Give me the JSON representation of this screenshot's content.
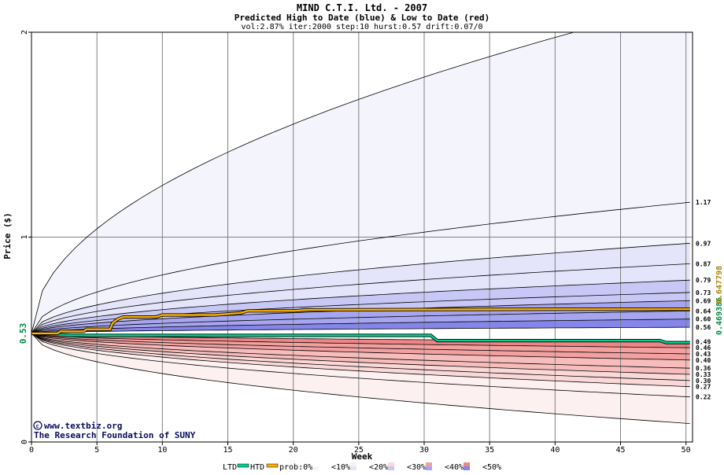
{
  "chart_data": {
    "type": "area",
    "title": "MIND C.T.I. Ltd. - 2007",
    "subtitle": "Predicted High to Date (blue) &  Low to Date (red)",
    "params": "vol:2.87% iter:2000 step:10 hurst:0.57 drift:0.07/0",
    "xlabel": "Week",
    "ylabel": "Price ($)",
    "xlim": [
      0,
      50.5
    ],
    "ylim": [
      0,
      2
    ],
    "x_ticks": [
      0,
      5,
      10,
      15,
      20,
      25,
      30,
      35,
      40,
      45,
      50
    ],
    "y_ticks": [
      0,
      1,
      2
    ],
    "grid": true,
    "start_price": 0.53,
    "start_price_label": "0.53",
    "htd_end_label": "0.647798",
    "ltd_end_label": "0.469386",
    "colors": {
      "high_band": [
        "#f4f4fc",
        "#e4e4fa",
        "#c8c8f6",
        "#a6a6f0",
        "#8585ea"
      ],
      "low_band": [
        "#fdf0f0",
        "#fbd8d8",
        "#f7bcbc",
        "#f3a0a0",
        "#ef8585"
      ],
      "htd_line": "#ffb000",
      "ltd_line": "#00d090",
      "grid": "#808080"
    },
    "high_quantiles": [
      {
        "label": "",
        "end": 2.15
      },
      {
        "label": "1.17",
        "end": 1.17
      },
      {
        "label": "0.97",
        "end": 0.97
      },
      {
        "label": "0.87",
        "end": 0.87
      },
      {
        "label": "0.79",
        "end": 0.79
      },
      {
        "label": "0.73",
        "end": 0.73
      },
      {
        "label": "0.69",
        "end": 0.69
      },
      {
        "label": "0.64",
        "end": 0.64
      },
      {
        "label": "0.60",
        "end": 0.6
      },
      {
        "label": "0.56",
        "end": 0.56
      }
    ],
    "low_quantiles": [
      {
        "label": "0.49",
        "end": 0.49
      },
      {
        "label": "0.46",
        "end": 0.46
      },
      {
        "label": "0.43",
        "end": 0.43
      },
      {
        "label": "0.40",
        "end": 0.4
      },
      {
        "label": "0.36",
        "end": 0.36
      },
      {
        "label": "0.33",
        "end": 0.33
      },
      {
        "label": "0.30",
        "end": 0.3
      },
      {
        "label": "0.27",
        "end": 0.27
      },
      {
        "label": "0.22",
        "end": 0.22
      },
      {
        "label": "",
        "end": 0.09
      }
    ],
    "htd_series": {
      "x": [
        0,
        2,
        2.2,
        4,
        4.2,
        6,
        6.2,
        6.6,
        7,
        9.5,
        10,
        14,
        16,
        16.5,
        20,
        21,
        40,
        50.3
      ],
      "y": [
        0.53,
        0.53,
        0.54,
        0.54,
        0.55,
        0.55,
        0.58,
        0.6,
        0.61,
        0.61,
        0.62,
        0.62,
        0.63,
        0.64,
        0.64,
        0.645,
        0.648,
        0.648
      ]
    },
    "ltd_series": {
      "x": [
        0,
        3,
        30.5,
        31,
        48,
        48.5,
        50.3
      ],
      "y": [
        0.53,
        0.52,
        0.52,
        0.495,
        0.495,
        0.485,
        0.485
      ]
    }
  },
  "credits": {
    "site": "www.textbiz.org",
    "org": "The Research Foundation of SUNY"
  },
  "legend": {
    "ltd": "LTD",
    "htd": "HTD",
    "prob_prefix": "prob:0%",
    "items": [
      "<10%",
      "<20%",
      "<30%",
      "<40%",
      "<50%"
    ]
  }
}
